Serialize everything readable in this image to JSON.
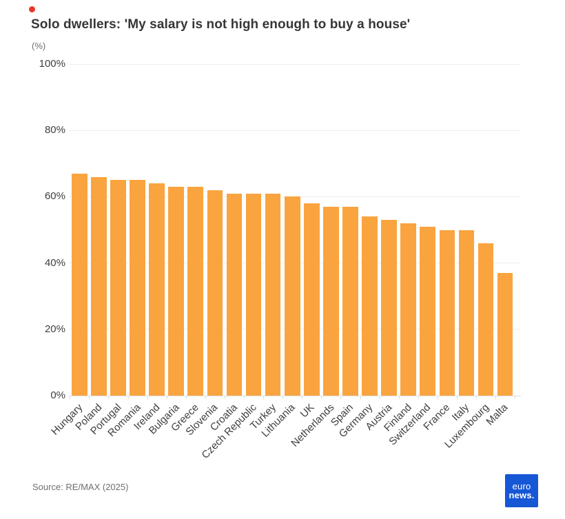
{
  "marker": {
    "name": "click-marker",
    "color": "#e8382b"
  },
  "header": {
    "title": "Solo dwellers: 'My salary is not high enough to buy a house'",
    "unit": "(%)"
  },
  "chart_data": {
    "type": "bar",
    "title": "Solo dwellers: 'My salary is not high enough to buy a house'",
    "xlabel": "",
    "ylabel": "(%)",
    "ylim": [
      0,
      100
    ],
    "grid": "horizontal-light-gray",
    "legend": "none",
    "bar_color": "#f9a43f",
    "yticks": [
      {
        "value": 0,
        "label": "0%"
      },
      {
        "value": 20,
        "label": "20%"
      },
      {
        "value": 40,
        "label": "40%"
      },
      {
        "value": 60,
        "label": "60%"
      },
      {
        "value": 80,
        "label": "80%"
      },
      {
        "value": 100,
        "label": "100%"
      }
    ],
    "categories": [
      "Hungary",
      "Poland",
      "Portugal",
      "Romania",
      "Ireland",
      "Bulgaria",
      "Greece",
      "Slovenia",
      "Croatia",
      "Czech Republic",
      "Turkey",
      "Lithuania",
      "UK",
      "Netherlands",
      "Spain",
      "Germany",
      "Austria",
      "Finland",
      "Switzerland",
      "France",
      "Italy",
      "Luxembourg",
      "Malta"
    ],
    "values": [
      67,
      66,
      65,
      65,
      64,
      63,
      63,
      62,
      61,
      61,
      61,
      60,
      58,
      57,
      57,
      54,
      53,
      52,
      51,
      50,
      50,
      46,
      37
    ]
  },
  "footer": {
    "source": "Source: RE/MAX (2025)",
    "logo": {
      "line1": "euro",
      "line2": "news.",
      "bg_color": "#1657d6"
    }
  }
}
